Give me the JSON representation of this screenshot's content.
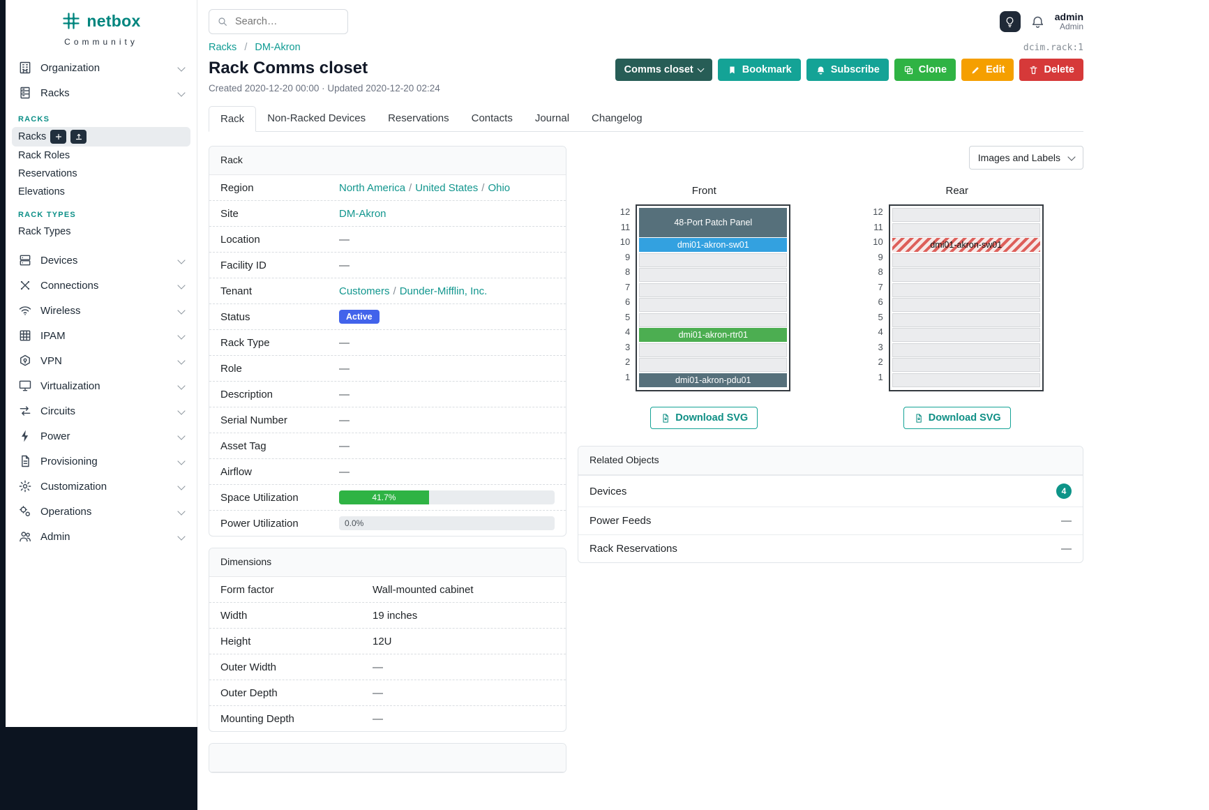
{
  "misc": {
    "slash": "/",
    "dash": "—"
  },
  "brand": {
    "name": "netbox",
    "tagline": "Community"
  },
  "topbar": {
    "search_placeholder": "Search…",
    "user_name": "admin",
    "user_role": "Admin"
  },
  "sidebar": {
    "top_items": [
      {
        "label": "Organization"
      },
      {
        "label": "Racks"
      }
    ],
    "groups": [
      {
        "heading": "RACKS",
        "items": [
          {
            "label": "Racks",
            "active": true
          },
          {
            "label": "Rack Roles"
          },
          {
            "label": "Reservations"
          },
          {
            "label": "Elevations"
          }
        ]
      },
      {
        "heading": "RACK TYPES",
        "items": [
          {
            "label": "Rack Types"
          }
        ]
      }
    ],
    "bottom_items": [
      {
        "label": "Devices"
      },
      {
        "label": "Connections"
      },
      {
        "label": "Wireless"
      },
      {
        "label": "IPAM"
      },
      {
        "label": "VPN"
      },
      {
        "label": "Virtualization"
      },
      {
        "label": "Circuits"
      },
      {
        "label": "Power"
      },
      {
        "label": "Provisioning"
      },
      {
        "label": "Customization"
      },
      {
        "label": "Operations"
      },
      {
        "label": "Admin"
      }
    ]
  },
  "breadcrumb": {
    "parent": "Racks",
    "current": "DM-Akron",
    "object_id": "dcim.rack:1"
  },
  "page": {
    "title": "Rack Comms closet",
    "meta": "Created 2020-12-20 00:00 · Updated 2020-12-20 02:24"
  },
  "actions": {
    "context_label": "Comms closet",
    "bookmark": "Bookmark",
    "subscribe": "Subscribe",
    "clone": "Clone",
    "edit": "Edit",
    "delete": "Delete"
  },
  "tabs": [
    {
      "label": "Rack",
      "active": true
    },
    {
      "label": "Non-Racked Devices"
    },
    {
      "label": "Reservations"
    },
    {
      "label": "Contacts"
    },
    {
      "label": "Journal"
    },
    {
      "label": "Changelog"
    }
  ],
  "rack_panel": {
    "title": "Rack",
    "labels": {
      "region": "Region",
      "site": "Site",
      "location": "Location",
      "facility_id": "Facility ID",
      "tenant": "Tenant",
      "status": "Status",
      "rack_type": "Rack Type",
      "role": "Role",
      "description": "Description",
      "serial_number": "Serial Number",
      "asset_tag": "Asset Tag",
      "airflow": "Airflow",
      "space_utilization": "Space Utilization",
      "power_utilization": "Power Utilization"
    },
    "region_links": [
      "North America",
      "United States",
      "Ohio"
    ],
    "site_link": "DM-Akron",
    "tenant_links": [
      "Customers",
      "Dunder-Mifflin, Inc."
    ],
    "status": "Active",
    "space_utilization": {
      "percent": 41.7,
      "label": "41.7%"
    },
    "power_utilization": {
      "percent": 0,
      "label": "0.0%"
    }
  },
  "dimensions_panel": {
    "title": "Dimensions",
    "labels": {
      "form_factor": "Form factor",
      "width": "Width",
      "height": "Height",
      "outer_width": "Outer Width",
      "outer_depth": "Outer Depth",
      "mounting_depth": "Mounting Depth"
    },
    "values": {
      "form_factor": "Wall-mounted cabinet",
      "width": "19 inches",
      "height": "12U"
    }
  },
  "elevation_controls": {
    "view_toggle": "Images and Labels",
    "download": "Download SVG"
  },
  "elevations": {
    "unit_count": 12,
    "front": {
      "title": "Front",
      "devices": [
        {
          "name": "48-Port Patch Panel",
          "u_start": 11,
          "u_height": 2,
          "color": "#56707b",
          "text_color": "#ffffff"
        },
        {
          "name": "dmi01-akron-sw01",
          "u_start": 10,
          "u_height": 1,
          "color": "#33a1e0",
          "text_color": "#ffffff"
        },
        {
          "name": "dmi01-akron-rtr01",
          "u_start": 4,
          "u_height": 1,
          "color": "#4cae51",
          "text_color": "#ffffff"
        },
        {
          "name": "dmi01-akron-pdu01",
          "u_start": 1,
          "u_height": 1,
          "color": "#56707b",
          "text_color": "#ffffff"
        }
      ]
    },
    "rear": {
      "title": "Rear",
      "devices": [
        {
          "name": "dmi01-akron-sw01",
          "u_start": 10,
          "u_height": 1,
          "hatched": true,
          "text_color": "#111111"
        }
      ]
    }
  },
  "related_panel": {
    "title": "Related Objects",
    "rows": [
      {
        "label": "Devices",
        "count": "4"
      },
      {
        "label": "Power Feeds",
        "empty": true
      },
      {
        "label": "Rack Reservations",
        "empty": true
      }
    ]
  },
  "colors": {
    "brand_teal": "#00857e",
    "link_teal": "#12968e",
    "button_teal": "#14a396",
    "button_dark_teal": "#275d56",
    "button_green": "#2fb344",
    "button_yellow": "#f59f00",
    "button_red": "#d63939",
    "status_active_blue": "#4263eb",
    "utilization_green": "#2fb344",
    "badge_teal": "#0d9488",
    "device_slate": "#56707b",
    "device_blue": "#33a1e0",
    "device_green": "#4cae51"
  }
}
